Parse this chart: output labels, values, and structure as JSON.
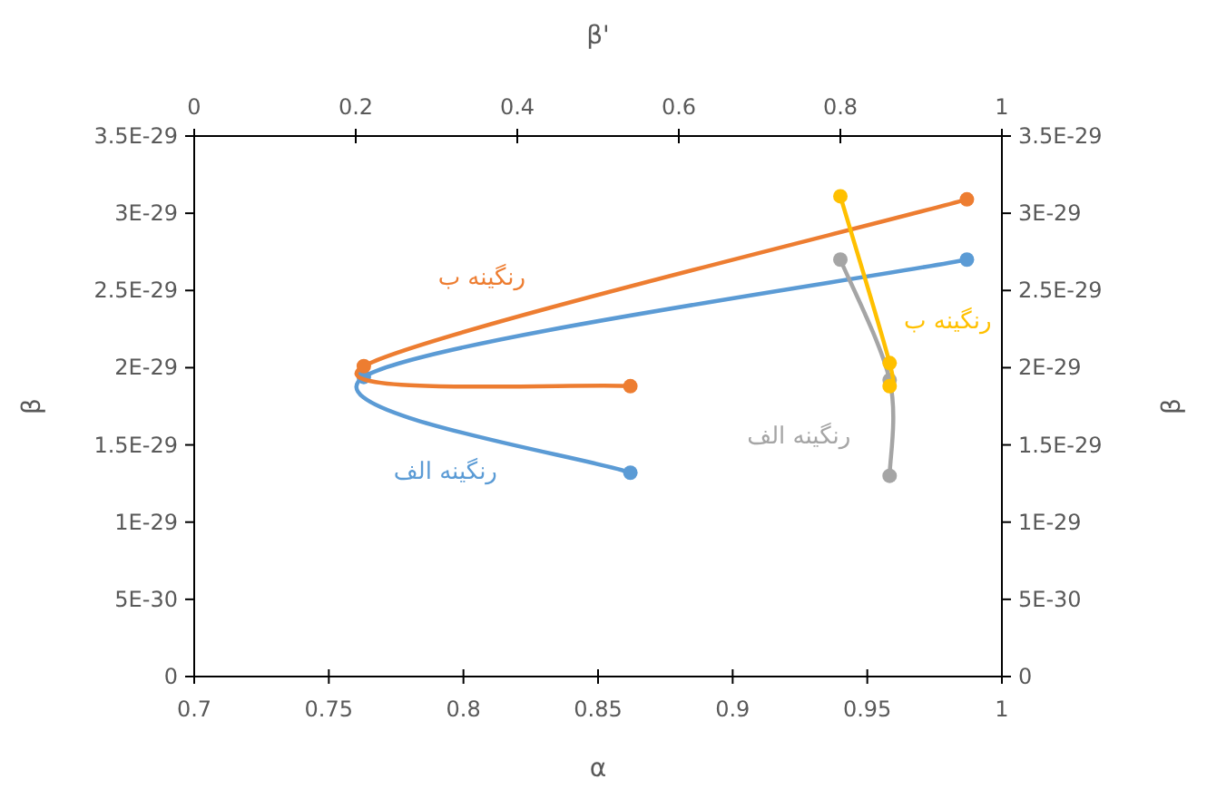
{
  "chart_data": {
    "type": "line",
    "xlabel": "α",
    "x2label": "β'",
    "ylabel": "β",
    "y2label": "β",
    "xlim": [
      0.7,
      1
    ],
    "xticks": [
      0.7,
      0.75,
      0.8,
      0.85,
      0.9,
      0.95,
      1
    ],
    "x2lim": [
      0,
      1
    ],
    "x2ticks": [
      0,
      0.2,
      0.4,
      0.6,
      0.8,
      1
    ],
    "ylim": [
      0,
      3.5e-29
    ],
    "yticks": [
      0,
      {
        "value": 5e-30,
        "label": "5E-30"
      },
      {
        "value": 1e-29,
        "label": "1E-29"
      },
      {
        "value": 1.5e-29,
        "label": "1.5E-29"
      },
      {
        "value": 2e-29,
        "label": "2E-29"
      },
      {
        "value": 2.5e-29,
        "label": "2.5E-29"
      },
      {
        "value": 3e-29,
        "label": "3E-29"
      },
      {
        "value": 3.5e-29,
        "label": "3.5E-29"
      }
    ],
    "y2lim": [
      0,
      3.5e-29
    ],
    "y2ticks": [
      0,
      {
        "value": 5e-30,
        "label": "5E-30"
      },
      {
        "value": 1e-29,
        "label": "1E-29"
      },
      {
        "value": 1.5e-29,
        "label": "1.5E-29"
      },
      {
        "value": 2e-29,
        "label": "2E-29"
      },
      {
        "value": 2.5e-29,
        "label": "2.5E-29"
      },
      {
        "value": 3e-29,
        "label": "3E-29"
      },
      {
        "value": 3.5e-29,
        "label": "3.5E-29"
      }
    ],
    "marker": "circle",
    "grid": false,
    "legend": false,
    "series": [
      {
        "name": "رنگینه الف",
        "color": "#5b9bd5",
        "x": [
          0.862,
          0.763,
          0.987
        ],
        "values": [
          1.32e-29,
          1.94e-29,
          2.7e-29
        ]
      },
      {
        "name": "رنگینه ب",
        "color": "#ed7d31",
        "x": [
          0.862,
          0.763,
          0.987
        ],
        "values": [
          1.88e-29,
          2.01e-29,
          3.09e-29
        ]
      },
      {
        "name": "رنگینه الف",
        "color": "#a5a5a5",
        "axis": "x2",
        "x": [
          0.861,
          0.861,
          0.8
        ],
        "values": [
          1.3e-29,
          1.92e-29,
          2.7e-29
        ]
      },
      {
        "name": "رنگینه ب",
        "color": "#ffc000",
        "axis": "x2",
        "x": [
          0.861,
          0.861,
          0.8
        ],
        "values": [
          1.88e-29,
          2.03e-29,
          3.11e-29
        ]
      }
    ]
  }
}
